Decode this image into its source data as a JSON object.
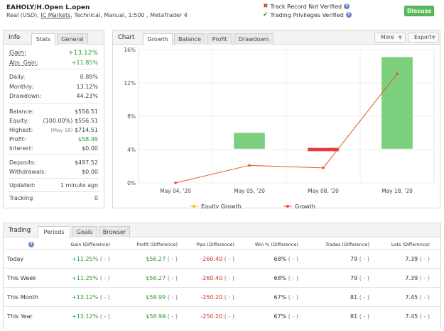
{
  "header": {
    "title": "EAHOLY/H.Open L.open",
    "sub_pre": "Real (USD), ",
    "sub_broker": "IC Markets",
    "sub_post": ", Technical, Manual, 1:500 , MetaTrader 4",
    "track_record": "Track Record Not Verified",
    "trading_privileges": "Trading Privileges Verified",
    "discuss_label": "Discuss"
  },
  "info": {
    "title": "Info",
    "tabs": [
      "Stats",
      "General"
    ],
    "gain_label": "Gain:",
    "gain_value": "+13.12%",
    "abs_gain_label": "Abs. Gain:",
    "abs_gain_value": "+11.85%",
    "daily_label": "Daily:",
    "daily_value": "0.89%",
    "monthly_label": "Monthly:",
    "monthly_value": "13.12%",
    "drawdown_label": "Drawdown:",
    "drawdown_value": "44.23%",
    "balance_label": "Balance:",
    "balance_value": "$556.51",
    "equity_label": "Equity:",
    "equity_value": "(100.00%) $556.51",
    "highest_label": "Highest:",
    "highest_date": "(May 18)",
    "highest_value": "$714.51",
    "profit_label": "Profit:",
    "profit_value": "$58.99",
    "interest_label": "Interest:",
    "interest_value": "$0.00",
    "deposits_label": "Deposits:",
    "deposits_value": "$497.52",
    "withdrawals_label": "Withdrawals:",
    "withdrawals_value": "$0.00",
    "updated_label": "Updated:",
    "updated_value": "1 minute ago",
    "tracking_label": "Tracking",
    "tracking_value": "0"
  },
  "chart_panel": {
    "title": "Chart",
    "tabs": [
      "Growth",
      "Balance",
      "Profit",
      "Drawdown"
    ],
    "more_label": "More",
    "export_label": "Export"
  },
  "chart_data": {
    "type": "line",
    "categories": [
      "May 04, '20",
      "May 05, '20",
      "May 08, '20",
      "May 18, '20"
    ],
    "y_ticks": [
      "0%",
      "4%",
      "8%",
      "12%",
      "16%"
    ],
    "ylim": [
      0,
      16
    ],
    "grid": true,
    "legend_position": "bottom",
    "series": [
      {
        "name": "Equity Growth",
        "values": [
          0,
          0,
          0,
          0
        ],
        "color": "#f0c419"
      },
      {
        "name": "Growth",
        "values": [
          0,
          2.1,
          1.8,
          13.1
        ],
        "color": "#e8542b"
      }
    ],
    "bars": [
      {
        "category": "May 05, '20",
        "low": 4.1,
        "high": 6.0,
        "color": "#7ccf7c"
      },
      {
        "category": "May 08, '20",
        "low": 3.8,
        "high": 4.2,
        "color": "#e83a3a"
      },
      {
        "category": "May 18, '20",
        "low": 4.1,
        "high": 15.1,
        "color": "#7ccf7c"
      }
    ]
  },
  "trading": {
    "title": "Trading",
    "tabs": [
      "Periods",
      "Goals",
      "Browser"
    ],
    "columns": [
      "Gain (Difference)",
      "Profit (Difference)",
      "Pips (Difference)",
      "Win % (Difference)",
      "Trades (Difference)",
      "Lots (Difference)"
    ],
    "diff": "( - )",
    "rows": [
      {
        "label": "Today",
        "gain": "+11.25%",
        "profit": "$56.27",
        "pips": "-260.40",
        "win": "68%",
        "trades": "79",
        "lots": "7.39"
      },
      {
        "label": "This Week",
        "gain": "+11.25%",
        "profit": "$56.27",
        "pips": "-260.40",
        "win": "68%",
        "trades": "79",
        "lots": "7.39"
      },
      {
        "label": "This Month",
        "gain": "+13.12%",
        "profit": "$58.99",
        "pips": "-250.20",
        "win": "67%",
        "trades": "81",
        "lots": "7.45"
      },
      {
        "label": "This Year",
        "gain": "+13.12%",
        "profit": "$58.99",
        "pips": "-250.20",
        "win": "67%",
        "trades": "81",
        "lots": "7.45"
      }
    ]
  }
}
